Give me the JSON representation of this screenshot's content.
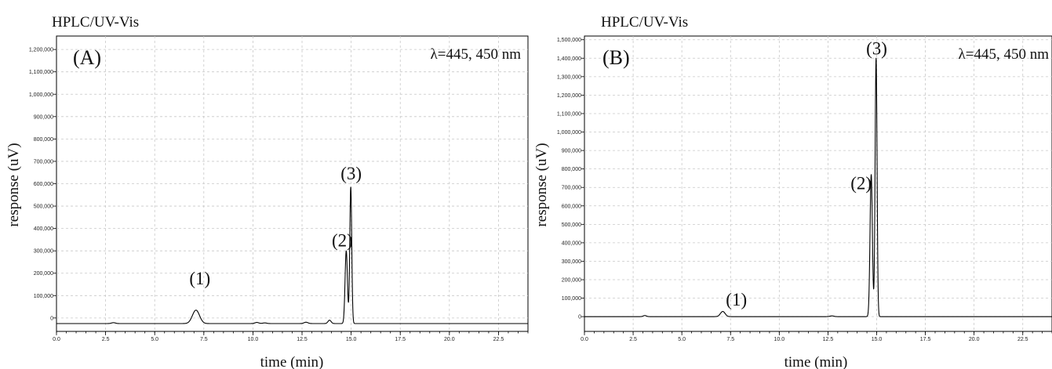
{
  "chart_data": [
    {
      "type": "line",
      "title": "HPLC/UV-Vis",
      "panel": "(A)",
      "annotation": "λ=445, 450 nm",
      "xlabel": "time (min)",
      "ylabel": "response (uV)",
      "xlim": [
        0,
        24
      ],
      "ylim": [
        -60000,
        1260000
      ],
      "x_ticks": [
        0.0,
        2.5,
        5.0,
        7.5,
        10.0,
        12.5,
        15.0,
        17.5,
        20.0,
        22.5
      ],
      "x_tick_labels": [
        "0.0",
        "2.5",
        "5.0",
        "7.5",
        "10.0",
        "12.5",
        "15.0",
        "17.5",
        "20.0",
        "22.5"
      ],
      "y_ticks": [
        0,
        100000,
        200000,
        300000,
        400000,
        500000,
        600000,
        700000,
        800000,
        900000,
        1000000,
        1100000,
        1200000
      ],
      "y_tick_labels": [
        "0",
        "100,000",
        "200,000",
        "300,000",
        "400,000",
        "500,000",
        "600,000",
        "700,000",
        "800,000",
        "900,000",
        "1,000,000",
        "1,100,000",
        "1,200,000"
      ],
      "grid": true,
      "baseline": -25000,
      "peaks": [
        {
          "label": "(1)",
          "x": 7.1,
          "height": 60000,
          "width": 0.18,
          "label_x": 7.3,
          "label_y": 150000
        },
        {
          "label": "(2)",
          "x": 14.75,
          "height": 325000,
          "width": 0.06,
          "label_x": 14.55,
          "label_y": 320000
        },
        {
          "label": "(3)",
          "x": 14.98,
          "height": 610000,
          "width": 0.05,
          "label_x": 15.0,
          "label_y": 620000
        }
      ],
      "minor_peaks": [
        {
          "x": 2.9,
          "height": 4000,
          "width": 0.1
        },
        {
          "x": 10.2,
          "height": 5000,
          "width": 0.1
        },
        {
          "x": 10.6,
          "height": 3000,
          "width": 0.1
        },
        {
          "x": 12.7,
          "height": 6000,
          "width": 0.1
        },
        {
          "x": 13.9,
          "height": 15000,
          "width": 0.08
        }
      ]
    },
    {
      "type": "line",
      "title": "HPLC/UV-Vis",
      "panel": "(B)",
      "annotation": "λ=445, 450 nm",
      "xlabel": "time (min)",
      "ylabel": "response (uV)",
      "xlim": [
        0,
        24
      ],
      "ylim": [
        -80000,
        1520000
      ],
      "x_ticks": [
        0.0,
        2.5,
        5.0,
        7.5,
        10.0,
        12.5,
        15.0,
        17.5,
        20.0,
        22.5
      ],
      "x_tick_labels": [
        "0.0",
        "2.5",
        "5.0",
        "7.5",
        "10.0",
        "12.5",
        "15.0",
        "17.5",
        "20.0",
        "22.5"
      ],
      "y_ticks": [
        0,
        100000,
        200000,
        300000,
        400000,
        500000,
        600000,
        700000,
        800000,
        900000,
        1000000,
        1100000,
        1200000,
        1300000,
        1400000,
        1500000
      ],
      "y_tick_labels": [
        "0",
        "100,000",
        "200,000",
        "300,000",
        "400,000",
        "500,000",
        "600,000",
        "700,000",
        "800,000",
        "900,000",
        "1,000,000",
        "1,100,000",
        "1,200,000",
        "1,300,000",
        "1,400,000",
        "1,500,000"
      ],
      "grid": true,
      "baseline": 0,
      "peaks": [
        {
          "label": "(1)",
          "x": 7.1,
          "height": 28000,
          "width": 0.12,
          "label_x": 7.8,
          "label_y": 60000
        },
        {
          "label": "(2)",
          "x": 14.72,
          "height": 770000,
          "width": 0.06,
          "label_x": 14.2,
          "label_y": 690000
        },
        {
          "label": "(3)",
          "x": 14.97,
          "height": 1400000,
          "width": 0.05,
          "label_x": 15.0,
          "label_y": 1420000
        }
      ],
      "minor_peaks": [
        {
          "x": 3.1,
          "height": 6000,
          "width": 0.08
        },
        {
          "x": 12.7,
          "height": 4000,
          "width": 0.1
        }
      ]
    }
  ]
}
